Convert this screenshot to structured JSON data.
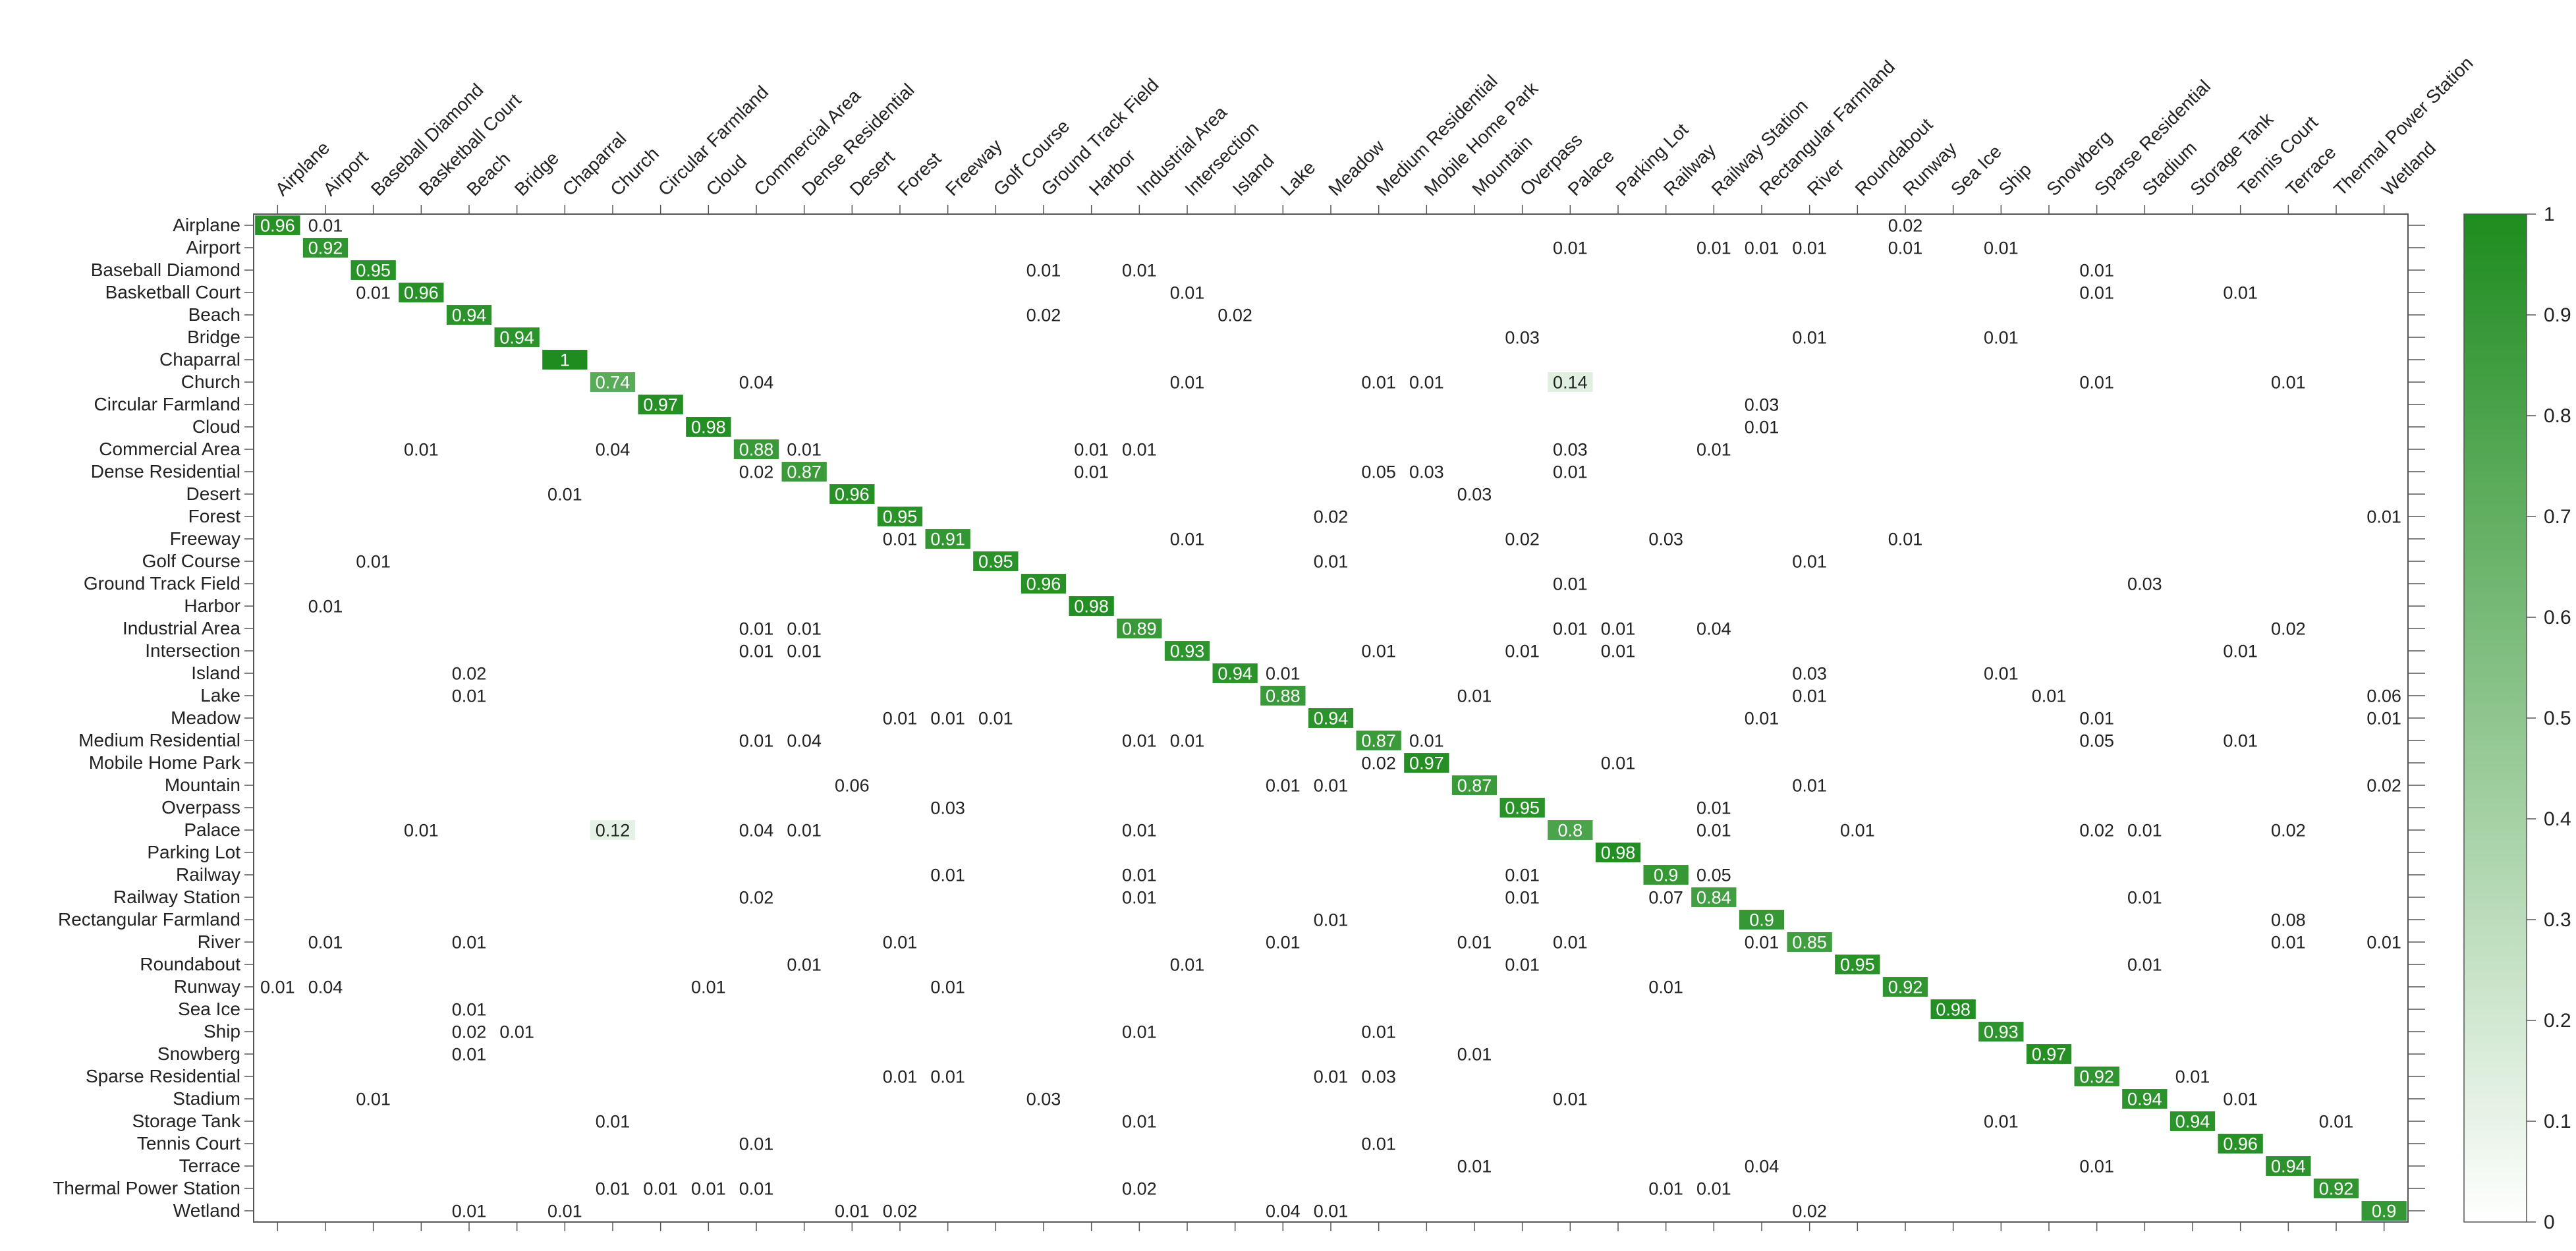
{
  "chart_data": {
    "type": "heatmap",
    "title": "",
    "xlabel": "",
    "ylabel": "",
    "labels": [
      "Airplane",
      "Airport",
      "Baseball Diamond",
      "Basketball Court",
      "Beach",
      "Bridge",
      "Chaparral",
      "Church",
      "Circular Farmland",
      "Cloud",
      "Commercial Area",
      "Dense Residential",
      "Desert",
      "Forest",
      "Freeway",
      "Golf Course",
      "Ground Track Field",
      "Harbor",
      "Industrial Area",
      "Intersection",
      "Island",
      "Lake",
      "Meadow",
      "Medium Residential",
      "Mobile Home Park",
      "Mountain",
      "Overpass",
      "Palace",
      "Parking Lot",
      "Railway",
      "Railway Station",
      "Rectangular Farmland",
      "River",
      "Roundabout",
      "Runway",
      "Sea Ice",
      "Ship",
      "Snowberg",
      "Sparse Residential",
      "Stadium",
      "Storage Tank",
      "Tennis Court",
      "Terrace",
      "Thermal Power Station",
      "Wetland"
    ],
    "cells": [
      {
        "r": 0,
        "c": 0,
        "v": 0.96
      },
      {
        "r": 0,
        "c": 1,
        "v": 0.01
      },
      {
        "r": 0,
        "c": 34,
        "v": 0.02
      },
      {
        "r": 1,
        "c": 1,
        "v": 0.92
      },
      {
        "r": 1,
        "c": 27,
        "v": 0.01
      },
      {
        "r": 1,
        "c": 30,
        "v": 0.01
      },
      {
        "r": 1,
        "c": 31,
        "v": 0.01
      },
      {
        "r": 1,
        "c": 32,
        "v": 0.01
      },
      {
        "r": 1,
        "c": 34,
        "v": 0.01
      },
      {
        "r": 1,
        "c": 36,
        "v": 0.01
      },
      {
        "r": 2,
        "c": 2,
        "v": 0.95
      },
      {
        "r": 2,
        "c": 16,
        "v": 0.01
      },
      {
        "r": 2,
        "c": 18,
        "v": 0.01
      },
      {
        "r": 2,
        "c": 38,
        "v": 0.01
      },
      {
        "r": 3,
        "c": 2,
        "v": 0.01
      },
      {
        "r": 3,
        "c": 3,
        "v": 0.96
      },
      {
        "r": 3,
        "c": 19,
        "v": 0.01
      },
      {
        "r": 3,
        "c": 38,
        "v": 0.01
      },
      {
        "r": 3,
        "c": 41,
        "v": 0.01
      },
      {
        "r": 4,
        "c": 4,
        "v": 0.94
      },
      {
        "r": 4,
        "c": 16,
        "v": 0.02
      },
      {
        "r": 4,
        "c": 20,
        "v": 0.02
      },
      {
        "r": 5,
        "c": 5,
        "v": 0.94
      },
      {
        "r": 5,
        "c": 26,
        "v": 0.03
      },
      {
        "r": 5,
        "c": 32,
        "v": 0.01
      },
      {
        "r": 5,
        "c": 36,
        "v": 0.01
      },
      {
        "r": 6,
        "c": 6,
        "v": 1
      },
      {
        "r": 7,
        "c": 7,
        "v": 0.74
      },
      {
        "r": 7,
        "c": 10,
        "v": 0.04
      },
      {
        "r": 7,
        "c": 19,
        "v": 0.01
      },
      {
        "r": 7,
        "c": 23,
        "v": 0.01
      },
      {
        "r": 7,
        "c": 24,
        "v": 0.01
      },
      {
        "r": 7,
        "c": 27,
        "v": 0.14
      },
      {
        "r": 7,
        "c": 38,
        "v": 0.01
      },
      {
        "r": 7,
        "c": 42,
        "v": 0.01
      },
      {
        "r": 8,
        "c": 8,
        "v": 0.97
      },
      {
        "r": 8,
        "c": 31,
        "v": 0.03
      },
      {
        "r": 9,
        "c": 9,
        "v": 0.98
      },
      {
        "r": 9,
        "c": 31,
        "v": 0.01
      },
      {
        "r": 10,
        "c": 3,
        "v": 0.01
      },
      {
        "r": 10,
        "c": 7,
        "v": 0.04
      },
      {
        "r": 10,
        "c": 10,
        "v": 0.88
      },
      {
        "r": 10,
        "c": 11,
        "v": 0.01
      },
      {
        "r": 10,
        "c": 17,
        "v": 0.01
      },
      {
        "r": 10,
        "c": 18,
        "v": 0.01
      },
      {
        "r": 10,
        "c": 27,
        "v": 0.03
      },
      {
        "r": 10,
        "c": 30,
        "v": 0.01
      },
      {
        "r": 11,
        "c": 10,
        "v": 0.02
      },
      {
        "r": 11,
        "c": 11,
        "v": 0.87
      },
      {
        "r": 11,
        "c": 17,
        "v": 0.01
      },
      {
        "r": 11,
        "c": 23,
        "v": 0.05
      },
      {
        "r": 11,
        "c": 24,
        "v": 0.03
      },
      {
        "r": 11,
        "c": 27,
        "v": 0.01
      },
      {
        "r": 12,
        "c": 6,
        "v": 0.01
      },
      {
        "r": 12,
        "c": 12,
        "v": 0.96
      },
      {
        "r": 12,
        "c": 25,
        "v": 0.03
      },
      {
        "r": 13,
        "c": 13,
        "v": 0.95
      },
      {
        "r": 13,
        "c": 22,
        "v": 0.02
      },
      {
        "r": 13,
        "c": 44,
        "v": 0.01
      },
      {
        "r": 14,
        "c": 13,
        "v": 0.01
      },
      {
        "r": 14,
        "c": 14,
        "v": 0.91
      },
      {
        "r": 14,
        "c": 19,
        "v": 0.01
      },
      {
        "r": 14,
        "c": 26,
        "v": 0.02
      },
      {
        "r": 14,
        "c": 29,
        "v": 0.03
      },
      {
        "r": 14,
        "c": 34,
        "v": 0.01
      },
      {
        "r": 15,
        "c": 2,
        "v": 0.01
      },
      {
        "r": 15,
        "c": 15,
        "v": 0.95
      },
      {
        "r": 15,
        "c": 22,
        "v": 0.01
      },
      {
        "r": 15,
        "c": 32,
        "v": 0.01
      },
      {
        "r": 16,
        "c": 16,
        "v": 0.96
      },
      {
        "r": 16,
        "c": 27,
        "v": 0.01
      },
      {
        "r": 16,
        "c": 39,
        "v": 0.03
      },
      {
        "r": 17,
        "c": 1,
        "v": 0.01
      },
      {
        "r": 17,
        "c": 17,
        "v": 0.98
      },
      {
        "r": 18,
        "c": 10,
        "v": 0.01
      },
      {
        "r": 18,
        "c": 11,
        "v": 0.01
      },
      {
        "r": 18,
        "c": 18,
        "v": 0.89
      },
      {
        "r": 18,
        "c": 27,
        "v": 0.01
      },
      {
        "r": 18,
        "c": 28,
        "v": 0.01
      },
      {
        "r": 18,
        "c": 30,
        "v": 0.04
      },
      {
        "r": 18,
        "c": 42,
        "v": 0.02
      },
      {
        "r": 19,
        "c": 10,
        "v": 0.01
      },
      {
        "r": 19,
        "c": 11,
        "v": 0.01
      },
      {
        "r": 19,
        "c": 19,
        "v": 0.93
      },
      {
        "r": 19,
        "c": 23,
        "v": 0.01
      },
      {
        "r": 19,
        "c": 26,
        "v": 0.01
      },
      {
        "r": 19,
        "c": 28,
        "v": 0.01
      },
      {
        "r": 19,
        "c": 41,
        "v": 0.01
      },
      {
        "r": 20,
        "c": 4,
        "v": 0.02
      },
      {
        "r": 20,
        "c": 20,
        "v": 0.94
      },
      {
        "r": 20,
        "c": 21,
        "v": 0.01
      },
      {
        "r": 20,
        "c": 32,
        "v": 0.03
      },
      {
        "r": 20,
        "c": 36,
        "v": 0.01
      },
      {
        "r": 21,
        "c": 4,
        "v": 0.01
      },
      {
        "r": 21,
        "c": 21,
        "v": 0.88
      },
      {
        "r": 21,
        "c": 25,
        "v": 0.01
      },
      {
        "r": 21,
        "c": 32,
        "v": 0.01
      },
      {
        "r": 21,
        "c": 37,
        "v": 0.01
      },
      {
        "r": 21,
        "c": 44,
        "v": 0.06
      },
      {
        "r": 22,
        "c": 13,
        "v": 0.01
      },
      {
        "r": 22,
        "c": 14,
        "v": 0.01
      },
      {
        "r": 22,
        "c": 15,
        "v": 0.01
      },
      {
        "r": 22,
        "c": 22,
        "v": 0.94
      },
      {
        "r": 22,
        "c": 31,
        "v": 0.01
      },
      {
        "r": 22,
        "c": 38,
        "v": 0.01
      },
      {
        "r": 22,
        "c": 44,
        "v": 0.01
      },
      {
        "r": 23,
        "c": 10,
        "v": 0.01
      },
      {
        "r": 23,
        "c": 11,
        "v": 0.04
      },
      {
        "r": 23,
        "c": 18,
        "v": 0.01
      },
      {
        "r": 23,
        "c": 19,
        "v": 0.01
      },
      {
        "r": 23,
        "c": 23,
        "v": 0.87
      },
      {
        "r": 23,
        "c": 24,
        "v": 0.01
      },
      {
        "r": 23,
        "c": 38,
        "v": 0.05
      },
      {
        "r": 23,
        "c": 41,
        "v": 0.01
      },
      {
        "r": 24,
        "c": 23,
        "v": 0.02
      },
      {
        "r": 24,
        "c": 24,
        "v": 0.97
      },
      {
        "r": 24,
        "c": 28,
        "v": 0.01
      },
      {
        "r": 25,
        "c": 12,
        "v": 0.06
      },
      {
        "r": 25,
        "c": 21,
        "v": 0.01
      },
      {
        "r": 25,
        "c": 22,
        "v": 0.01
      },
      {
        "r": 25,
        "c": 25,
        "v": 0.87
      },
      {
        "r": 25,
        "c": 32,
        "v": 0.01
      },
      {
        "r": 25,
        "c": 44,
        "v": 0.02
      },
      {
        "r": 26,
        "c": 14,
        "v": 0.03
      },
      {
        "r": 26,
        "c": 26,
        "v": 0.95
      },
      {
        "r": 26,
        "c": 30,
        "v": 0.01
      },
      {
        "r": 27,
        "c": 3,
        "v": 0.01
      },
      {
        "r": 27,
        "c": 7,
        "v": 0.12
      },
      {
        "r": 27,
        "c": 10,
        "v": 0.04
      },
      {
        "r": 27,
        "c": 11,
        "v": 0.01
      },
      {
        "r": 27,
        "c": 18,
        "v": 0.01
      },
      {
        "r": 27,
        "c": 27,
        "v": 0.8
      },
      {
        "r": 27,
        "c": 30,
        "v": 0.01
      },
      {
        "r": 27,
        "c": 33,
        "v": 0.01
      },
      {
        "r": 27,
        "c": 38,
        "v": 0.02
      },
      {
        "r": 27,
        "c": 39,
        "v": 0.01
      },
      {
        "r": 27,
        "c": 42,
        "v": 0.02
      },
      {
        "r": 28,
        "c": 28,
        "v": 0.98
      },
      {
        "r": 29,
        "c": 14,
        "v": 0.01
      },
      {
        "r": 29,
        "c": 18,
        "v": 0.01
      },
      {
        "r": 29,
        "c": 26,
        "v": 0.01
      },
      {
        "r": 29,
        "c": 29,
        "v": 0.9
      },
      {
        "r": 29,
        "c": 30,
        "v": 0.05
      },
      {
        "r": 30,
        "c": 10,
        "v": 0.02
      },
      {
        "r": 30,
        "c": 18,
        "v": 0.01
      },
      {
        "r": 30,
        "c": 26,
        "v": 0.01
      },
      {
        "r": 30,
        "c": 29,
        "v": 0.07
      },
      {
        "r": 30,
        "c": 30,
        "v": 0.84
      },
      {
        "r": 30,
        "c": 39,
        "v": 0.01
      },
      {
        "r": 31,
        "c": 22,
        "v": 0.01
      },
      {
        "r": 31,
        "c": 31,
        "v": 0.9
      },
      {
        "r": 31,
        "c": 42,
        "v": 0.08
      },
      {
        "r": 32,
        "c": 1,
        "v": 0.01
      },
      {
        "r": 32,
        "c": 4,
        "v": 0.01
      },
      {
        "r": 32,
        "c": 13,
        "v": 0.01
      },
      {
        "r": 32,
        "c": 21,
        "v": 0.01
      },
      {
        "r": 32,
        "c": 25,
        "v": 0.01
      },
      {
        "r": 32,
        "c": 27,
        "v": 0.01
      },
      {
        "r": 32,
        "c": 31,
        "v": 0.01
      },
      {
        "r": 32,
        "c": 32,
        "v": 0.85
      },
      {
        "r": 32,
        "c": 42,
        "v": 0.01
      },
      {
        "r": 32,
        "c": 44,
        "v": 0.01
      },
      {
        "r": 33,
        "c": 11,
        "v": 0.01
      },
      {
        "r": 33,
        "c": 19,
        "v": 0.01
      },
      {
        "r": 33,
        "c": 26,
        "v": 0.01
      },
      {
        "r": 33,
        "c": 33,
        "v": 0.95
      },
      {
        "r": 33,
        "c": 39,
        "v": 0.01
      },
      {
        "r": 34,
        "c": 0,
        "v": 0.01
      },
      {
        "r": 34,
        "c": 1,
        "v": 0.04
      },
      {
        "r": 34,
        "c": 9,
        "v": 0.01
      },
      {
        "r": 34,
        "c": 14,
        "v": 0.01
      },
      {
        "r": 34,
        "c": 29,
        "v": 0.01
      },
      {
        "r": 34,
        "c": 34,
        "v": 0.92
      },
      {
        "r": 35,
        "c": 4,
        "v": 0.01
      },
      {
        "r": 35,
        "c": 35,
        "v": 0.98
      },
      {
        "r": 36,
        "c": 4,
        "v": 0.02
      },
      {
        "r": 36,
        "c": 5,
        "v": 0.01
      },
      {
        "r": 36,
        "c": 18,
        "v": 0.01
      },
      {
        "r": 36,
        "c": 23,
        "v": 0.01
      },
      {
        "r": 36,
        "c": 36,
        "v": 0.93
      },
      {
        "r": 37,
        "c": 4,
        "v": 0.01
      },
      {
        "r": 37,
        "c": 25,
        "v": 0.01
      },
      {
        "r": 37,
        "c": 37,
        "v": 0.97
      },
      {
        "r": 38,
        "c": 13,
        "v": 0.01
      },
      {
        "r": 38,
        "c": 14,
        "v": 0.01
      },
      {
        "r": 38,
        "c": 22,
        "v": 0.01
      },
      {
        "r": 38,
        "c": 23,
        "v": 0.03
      },
      {
        "r": 38,
        "c": 38,
        "v": 0.92
      },
      {
        "r": 38,
        "c": 40,
        "v": 0.01
      },
      {
        "r": 39,
        "c": 2,
        "v": 0.01
      },
      {
        "r": 39,
        "c": 16,
        "v": 0.03
      },
      {
        "r": 39,
        "c": 27,
        "v": 0.01
      },
      {
        "r": 39,
        "c": 39,
        "v": 0.94
      },
      {
        "r": 39,
        "c": 41,
        "v": 0.01
      },
      {
        "r": 40,
        "c": 7,
        "v": 0.01
      },
      {
        "r": 40,
        "c": 18,
        "v": 0.01
      },
      {
        "r": 40,
        "c": 36,
        "v": 0.01
      },
      {
        "r": 40,
        "c": 40,
        "v": 0.94
      },
      {
        "r": 40,
        "c": 43,
        "v": 0.01
      },
      {
        "r": 41,
        "c": 10,
        "v": 0.01
      },
      {
        "r": 41,
        "c": 23,
        "v": 0.01
      },
      {
        "r": 41,
        "c": 41,
        "v": 0.96
      },
      {
        "r": 42,
        "c": 25,
        "v": 0.01
      },
      {
        "r": 42,
        "c": 31,
        "v": 0.04
      },
      {
        "r": 42,
        "c": 38,
        "v": 0.01
      },
      {
        "r": 42,
        "c": 42,
        "v": 0.94
      },
      {
        "r": 43,
        "c": 7,
        "v": 0.01
      },
      {
        "r": 43,
        "c": 8,
        "v": 0.01
      },
      {
        "r": 43,
        "c": 9,
        "v": 0.01
      },
      {
        "r": 43,
        "c": 10,
        "v": 0.01
      },
      {
        "r": 43,
        "c": 18,
        "v": 0.02
      },
      {
        "r": 43,
        "c": 29,
        "v": 0.01
      },
      {
        "r": 43,
        "c": 30,
        "v": 0.01
      },
      {
        "r": 43,
        "c": 43,
        "v": 0.92
      },
      {
        "r": 44,
        "c": 4,
        "v": 0.01
      },
      {
        "r": 44,
        "c": 6,
        "v": 0.01
      },
      {
        "r": 44,
        "c": 12,
        "v": 0.01
      },
      {
        "r": 44,
        "c": 13,
        "v": 0.02
      },
      {
        "r": 44,
        "c": 21,
        "v": 0.04
      },
      {
        "r": 44,
        "c": 22,
        "v": 0.01
      },
      {
        "r": 44,
        "c": 32,
        "v": 0.02
      },
      {
        "r": 44,
        "c": 44,
        "v": 0.9
      }
    ],
    "colorbar": {
      "min": 0,
      "max": 1,
      "ticks": [
        "0",
        "0.1",
        "0.2",
        "0.3",
        "0.4",
        "0.5",
        "0.6",
        "0.7",
        "0.8",
        "0.9",
        "1"
      ],
      "color_low": "#ffffff",
      "color_high": "#1e8c1e"
    },
    "legend_placement": "right",
    "grid": false
  }
}
